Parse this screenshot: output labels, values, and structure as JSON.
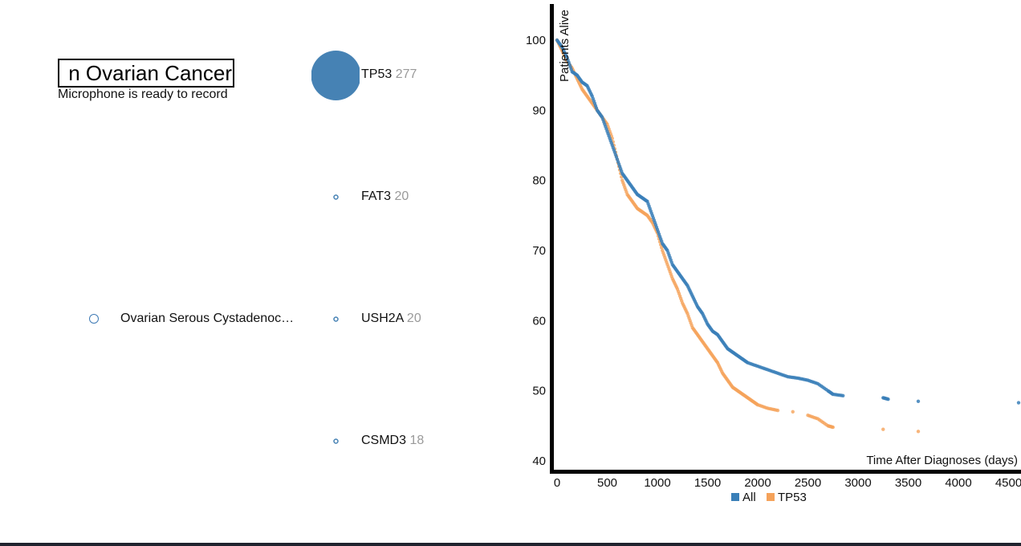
{
  "search": {
    "value": "n Ovarian Cancer"
  },
  "mic_status": "Microphone is ready to record",
  "disease": {
    "label": "Ovarian Serous Cystadenocarcinoma",
    "display": "Ovarian Serous Cystadenoca..."
  },
  "genes": [
    {
      "name": "TP53",
      "count": "277"
    },
    {
      "name": "FAT3",
      "count": "20"
    },
    {
      "name": "USH2A",
      "count": "20"
    },
    {
      "name": "CSMD3",
      "count": "18"
    }
  ],
  "colors": {
    "all": "#3a7fb8",
    "tp53": "#f5a25a",
    "node": "#4682b4"
  },
  "chart_data": {
    "type": "scatter",
    "title": "",
    "xlabel": "Time After Diagnoses (days)",
    "ylabel": "Patients Alive",
    "xlim": [
      0,
      4600
    ],
    "ylim": [
      40,
      100
    ],
    "x_ticks": [
      "0",
      "500",
      "1000",
      "1500",
      "2000",
      "2500",
      "3000",
      "3500",
      "4000",
      "4500"
    ],
    "y_ticks": [
      "40",
      "50",
      "60",
      "70",
      "80",
      "90",
      "100"
    ],
    "legend": [
      "All",
      "TP53"
    ],
    "series": [
      {
        "name": "All",
        "points": [
          [
            0,
            100
          ],
          [
            50,
            99
          ],
          [
            100,
            97.5
          ],
          [
            150,
            95.5
          ],
          [
            200,
            95
          ],
          [
            250,
            94
          ],
          [
            300,
            93.5
          ],
          [
            350,
            92
          ],
          [
            400,
            90
          ],
          [
            450,
            89
          ],
          [
            500,
            87
          ],
          [
            550,
            85
          ],
          [
            600,
            83
          ],
          [
            650,
            81
          ],
          [
            700,
            80
          ],
          [
            750,
            79
          ],
          [
            800,
            78
          ],
          [
            850,
            77.5
          ],
          [
            900,
            77
          ],
          [
            950,
            75
          ],
          [
            1000,
            73
          ],
          [
            1050,
            71
          ],
          [
            1100,
            70
          ],
          [
            1150,
            68
          ],
          [
            1200,
            67
          ],
          [
            1250,
            66
          ],
          [
            1300,
            65
          ],
          [
            1350,
            63.5
          ],
          [
            1400,
            62
          ],
          [
            1450,
            61
          ],
          [
            1500,
            59.5
          ],
          [
            1550,
            58.5
          ],
          [
            1600,
            58
          ],
          [
            1650,
            57
          ],
          [
            1700,
            56
          ],
          [
            1750,
            55.5
          ],
          [
            1800,
            55
          ],
          [
            1850,
            54.5
          ],
          [
            1900,
            54
          ],
          [
            2000,
            53.5
          ],
          [
            2100,
            53
          ],
          [
            2200,
            52.5
          ],
          [
            2300,
            52
          ],
          [
            2400,
            51.8
          ],
          [
            2500,
            51.5
          ],
          [
            2600,
            51
          ],
          [
            2700,
            50
          ],
          [
            2750,
            49.5
          ],
          [
            2850,
            49.3
          ],
          [
            3250,
            49
          ],
          [
            3300,
            48.8
          ],
          [
            3600,
            48.5
          ],
          [
            4600,
            48.3
          ]
        ]
      },
      {
        "name": "TP53",
        "points": [
          [
            0,
            100
          ],
          [
            50,
            98.5
          ],
          [
            100,
            97
          ],
          [
            150,
            96
          ],
          [
            200,
            94.5
          ],
          [
            250,
            93
          ],
          [
            300,
            92
          ],
          [
            350,
            91
          ],
          [
            400,
            90
          ],
          [
            450,
            89
          ],
          [
            500,
            88
          ],
          [
            550,
            86
          ],
          [
            600,
            83
          ],
          [
            650,
            80
          ],
          [
            700,
            78
          ],
          [
            750,
            77
          ],
          [
            800,
            76
          ],
          [
            850,
            75.5
          ],
          [
            900,
            75
          ],
          [
            950,
            74
          ],
          [
            1000,
            72.5
          ],
          [
            1050,
            70
          ],
          [
            1100,
            68
          ],
          [
            1150,
            66
          ],
          [
            1200,
            64.5
          ],
          [
            1250,
            62.5
          ],
          [
            1300,
            61
          ],
          [
            1350,
            59
          ],
          [
            1400,
            58
          ],
          [
            1450,
            57
          ],
          [
            1500,
            56
          ],
          [
            1550,
            55
          ],
          [
            1600,
            54
          ],
          [
            1650,
            52.5
          ],
          [
            1700,
            51.5
          ],
          [
            1750,
            50.5
          ],
          [
            1800,
            50
          ],
          [
            1850,
            49.5
          ],
          [
            1900,
            49
          ],
          [
            1950,
            48.5
          ],
          [
            2000,
            48
          ],
          [
            2100,
            47.5
          ],
          [
            2200,
            47.2
          ],
          [
            2350,
            47
          ],
          [
            2500,
            46.5
          ],
          [
            2600,
            46
          ],
          [
            2700,
            45
          ],
          [
            2750,
            44.8
          ],
          [
            3250,
            44.5
          ],
          [
            3600,
            44.2
          ]
        ]
      }
    ]
  }
}
